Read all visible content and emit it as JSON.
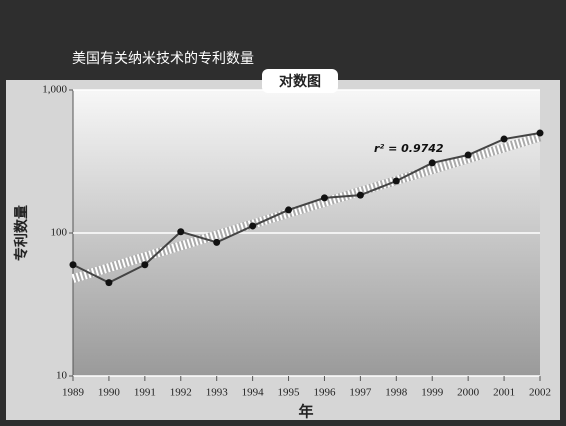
{
  "chart_data": {
    "type": "line",
    "title": "美国有关纳米技术的专利数量",
    "subtitle": "对数图",
    "x_label": "年",
    "y_label": "专利数量",
    "annotation": "r² = 0.9742",
    "x": [
      1989,
      1990,
      1991,
      1992,
      1993,
      1994,
      1995,
      1996,
      1997,
      1998,
      1999,
      2000,
      2001,
      2002
    ],
    "values": [
      60,
      45,
      60,
      102,
      86,
      112,
      145,
      176,
      184,
      231,
      309,
      351,
      454,
      500
    ],
    "color": "#444444",
    "trendline": {
      "x": [
        1989,
        2002
      ],
      "values": [
        48,
        470
      ]
    },
    "xlim": [
      1989,
      2002
    ],
    "xticks": [
      1989,
      1990,
      1991,
      1992,
      1993,
      1994,
      1995,
      1996,
      1997,
      1998,
      1999,
      2000,
      2001,
      2002
    ],
    "ylim": [
      10,
      1000
    ],
    "yticks": [
      {
        "value": 1000,
        "label": "1,000"
      },
      100,
      10
    ],
    "log_scale": true,
    "grid": true
  }
}
